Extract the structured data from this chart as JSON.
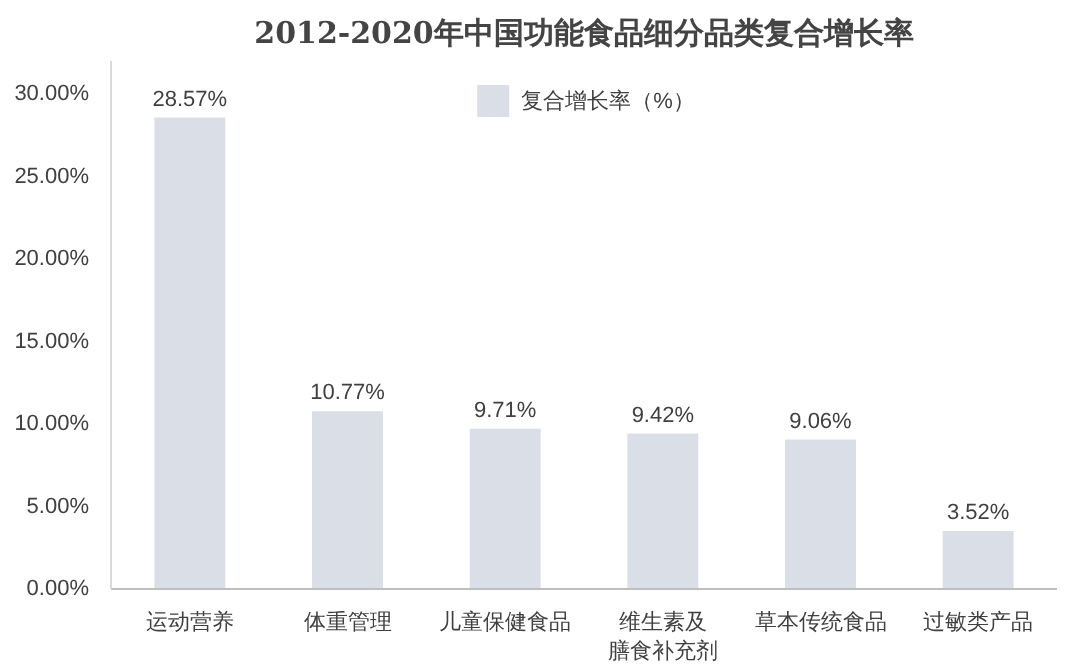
{
  "chart_data": {
    "type": "bar",
    "title": "2012-2020年中国功能食品细分品类复合增长率",
    "categories": [
      "运动营养",
      "体重管理",
      "儿童保健食品",
      "维生素及膳食补充剂",
      "草本传统食品",
      "过敏类产品"
    ],
    "series": [
      {
        "name": "复合增长率（%）",
        "color": "#dadee7",
        "values": [
          28.57,
          10.77,
          9.71,
          9.42,
          9.06,
          3.52
        ]
      }
    ],
    "value_labels": [
      "28.57%",
      "10.77%",
      "9.71%",
      "9.42%",
      "9.06%",
      "3.52%"
    ],
    "ylim": [
      0,
      32
    ],
    "yticks": [
      {
        "value": 0,
        "label": "0.00%"
      },
      {
        "value": 5,
        "label": "5.00%"
      },
      {
        "value": 10,
        "label": "10.00%"
      },
      {
        "value": 15,
        "label": "15.00%"
      },
      {
        "value": 20,
        "label": "20.00%"
      },
      {
        "value": 25,
        "label": "25.00%"
      },
      {
        "value": 30,
        "label": "30.00%"
      }
    ],
    "grid": false,
    "legend": "top"
  }
}
